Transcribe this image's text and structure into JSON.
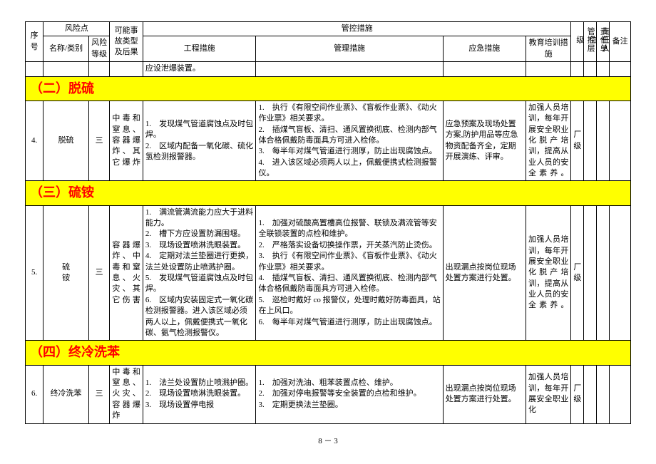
{
  "header": {
    "seq": "序号",
    "riskPoint": "风险点",
    "nameType": "名称/类别",
    "riskLevel": "风险等级",
    "accident": "可能事故类型及后果",
    "ctrlMeasures": "管控措施",
    "engineering": "工程措施",
    "management": "管理措施",
    "emergency": "应急措施",
    "education": "教育培训措施",
    "ctrlLevel": "管控层级",
    "respUnit": "责任单位",
    "respPerson": "责任人",
    "remark": "备注"
  },
  "carryRow": {
    "engineering": "应设泄爆装置。"
  },
  "sections": [
    {
      "title": "（二）脱硫",
      "rows": [
        {
          "seq": "4.",
          "name": "脱硫",
          "level": "三",
          "accident": "中毒和窒息、容器爆炸、其它爆炸",
          "engineering": "1.　发现煤气管道腐蚀点及时包焊。\n2.　区域内配备一氧化碳、硫化氢检测报警器。",
          "management": "1.　执行《有限空间作业票》、《盲板作业票》、《动火作业票》相关要求。\n2.　插煤气盲板、清扫、通风置换彻底、检测内部气体合格佩戴防毒面具方可进入检修。\n3.　每半年对煤气管道进行测厚，防止出现腐蚀点。\n4.　进入该区域必须两人以上，佩戴便携式检测报警仪。",
          "emergency": "应急预案及现场处置方案,防护用品等应急物资配备齐全，定期开展演练、评审。",
          "education": "加强人员培训，每年开展安全职业化脱产培训，提高从业人员的安全素养。",
          "ctrlLevel": "厂级"
        }
      ]
    },
    {
      "title": "（三）硫铵",
      "rows": [
        {
          "seq": "5.",
          "name": "硫\n铵",
          "level": "三",
          "accident": "容器爆炸、中毒和窒息、火灾、其它伤害",
          "engineering": "1.　满流管满流能力应大于进料能力。\n2.　槽下方应设置防漏围堰。\n3.　现场设置喷淋洗眼装置。\n4.　定期对法兰垫圈进行更换，法兰处设置防止喷溅护圈。\n5.　发现煤气管道腐蚀点及时包焊。\n6.　区域内安装固定式一氧化碳检测报警器。进入该区域必须两人以上，佩戴便携式一氧化碳、氨气检测报警仪。",
          "management": "1.　加强对硫酸高置槽高位报警、联锁及满流管等安全联锁装置的点检和维护。\n2.　严格落实设备切换操作票，开关蒸汽防止烫伤。\n3.　执行《有限空间作业票》、《盲板作业票》、《动火作业票》相关要求。\n4.　插煤气盲板、清扫、通风置换彻底、检测内部气体合格佩戴防毒面具方可进入检修。\n5.　巡检时戴好 co 报警仪，处理时戴好防毒面具，站在上风口。\n6.　每半年对煤气管道进行测厚，防止出现腐蚀点。",
          "emergency": "出现漏点按岗位现场处置方案进行处置。",
          "education": "加强人员培训，每年开展安全职业化脱产培训，提高从业人员的安全素养。",
          "ctrlLevel": "厂级"
        }
      ]
    },
    {
      "title": "（四）终冷洗苯",
      "rows": [
        {
          "seq": "6.",
          "name": "终冷洗苯",
          "level": "三",
          "accident": "中毒和窒息、火灾、容器爆炸",
          "engineering": "1.　法兰处设置防止喷溅护圈。\n2.　现场设置喷淋洗眼装置。\n3.　现场设置停电报",
          "management": "1.　加强对洗油、粗苯装置点检、维护。\n2.　加强对停电报警等安全装置的点检和维护。\n3.　定期更换法兰垫圈。",
          "emergency": "出现漏点按岗位现场处置方案进行处置。",
          "education": "加强人员培训，每年开展安全职业化",
          "ctrlLevel": "厂级"
        }
      ]
    }
  ],
  "pageNum": "8 － 3",
  "style": {
    "colWidths": [
      "24px",
      "60px",
      "28px",
      "44px",
      "150px",
      "248px",
      "110px",
      "60px",
      "17px",
      "17px",
      "17px",
      "28px"
    ],
    "sectionBg": "#ffff00",
    "sectionColor": "#ff0000"
  }
}
